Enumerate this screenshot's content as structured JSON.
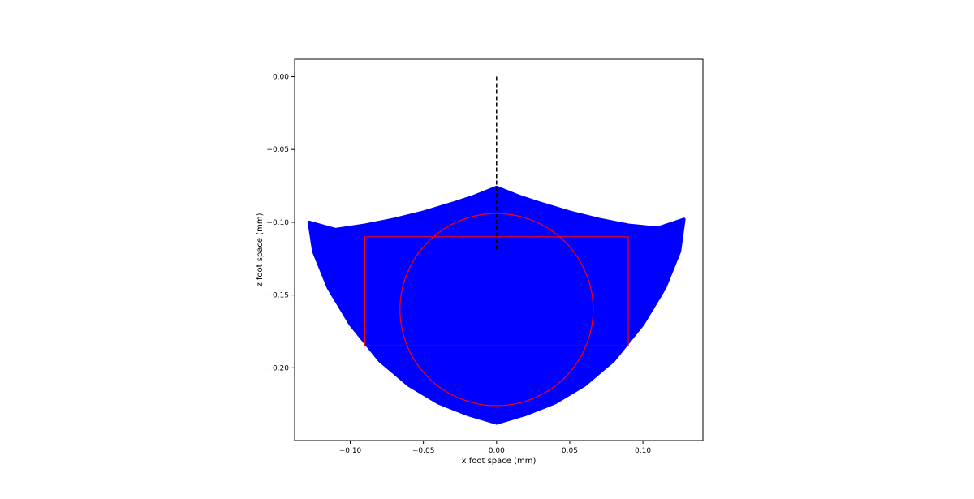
{
  "chart_data": {
    "type": "scatter",
    "title": "",
    "xlabel": "x foot space (mm)",
    "ylabel": "z foot space (mm)",
    "xlim": [
      -0.138,
      0.141
    ],
    "ylim": [
      -0.25,
      0.012
    ],
    "xticks": [
      -0.1,
      -0.05,
      0.0,
      0.05,
      0.1
    ],
    "xtick_labels": [
      "−0.10",
      "−0.05",
      "0.00",
      "0.05",
      "0.10"
    ],
    "yticks": [
      0.0,
      -0.05,
      -0.1,
      -0.15,
      -0.2
    ],
    "ytick_labels": [
      "0.00",
      "−0.05",
      "−0.10",
      "−0.15",
      "−0.20"
    ],
    "grid": false,
    "legend": "none",
    "series": [
      {
        "kind": "filled-scatter-region",
        "color": "#0000ff",
        "boundary": [
          [
            -0.128,
            -0.1
          ],
          [
            -0.11,
            -0.105
          ],
          [
            -0.09,
            -0.102
          ],
          [
            -0.07,
            -0.098
          ],
          [
            -0.05,
            -0.093
          ],
          [
            -0.03,
            -0.087
          ],
          [
            -0.015,
            -0.082
          ],
          [
            0.0,
            -0.076
          ],
          [
            0.015,
            -0.082
          ],
          [
            0.03,
            -0.087
          ],
          [
            0.05,
            -0.093
          ],
          [
            0.07,
            -0.098
          ],
          [
            0.09,
            -0.102
          ],
          [
            0.11,
            -0.104
          ],
          [
            0.128,
            -0.098
          ],
          [
            0.125,
            -0.12
          ],
          [
            0.115,
            -0.145
          ],
          [
            0.1,
            -0.17
          ],
          [
            0.08,
            -0.195
          ],
          [
            0.06,
            -0.212
          ],
          [
            0.04,
            -0.224
          ],
          [
            0.02,
            -0.232
          ],
          [
            0.0,
            -0.238
          ],
          [
            -0.02,
            -0.232
          ],
          [
            -0.04,
            -0.224
          ],
          [
            -0.06,
            -0.212
          ],
          [
            -0.08,
            -0.195
          ],
          [
            -0.1,
            -0.17
          ],
          [
            -0.115,
            -0.145
          ],
          [
            -0.125,
            -0.12
          ]
        ]
      },
      {
        "kind": "dashed-line",
        "color": "#000000",
        "x": [
          0.0,
          0.0
        ],
        "y": [
          0.0,
          -0.12
        ]
      },
      {
        "kind": "rectangle",
        "color": "#ff0000",
        "x_range": [
          -0.09,
          0.09
        ],
        "y_range": [
          -0.185,
          -0.11
        ]
      },
      {
        "kind": "circle",
        "color": "#ff0000",
        "center": [
          0.0,
          -0.16
        ],
        "radius": 0.066
      }
    ]
  }
}
